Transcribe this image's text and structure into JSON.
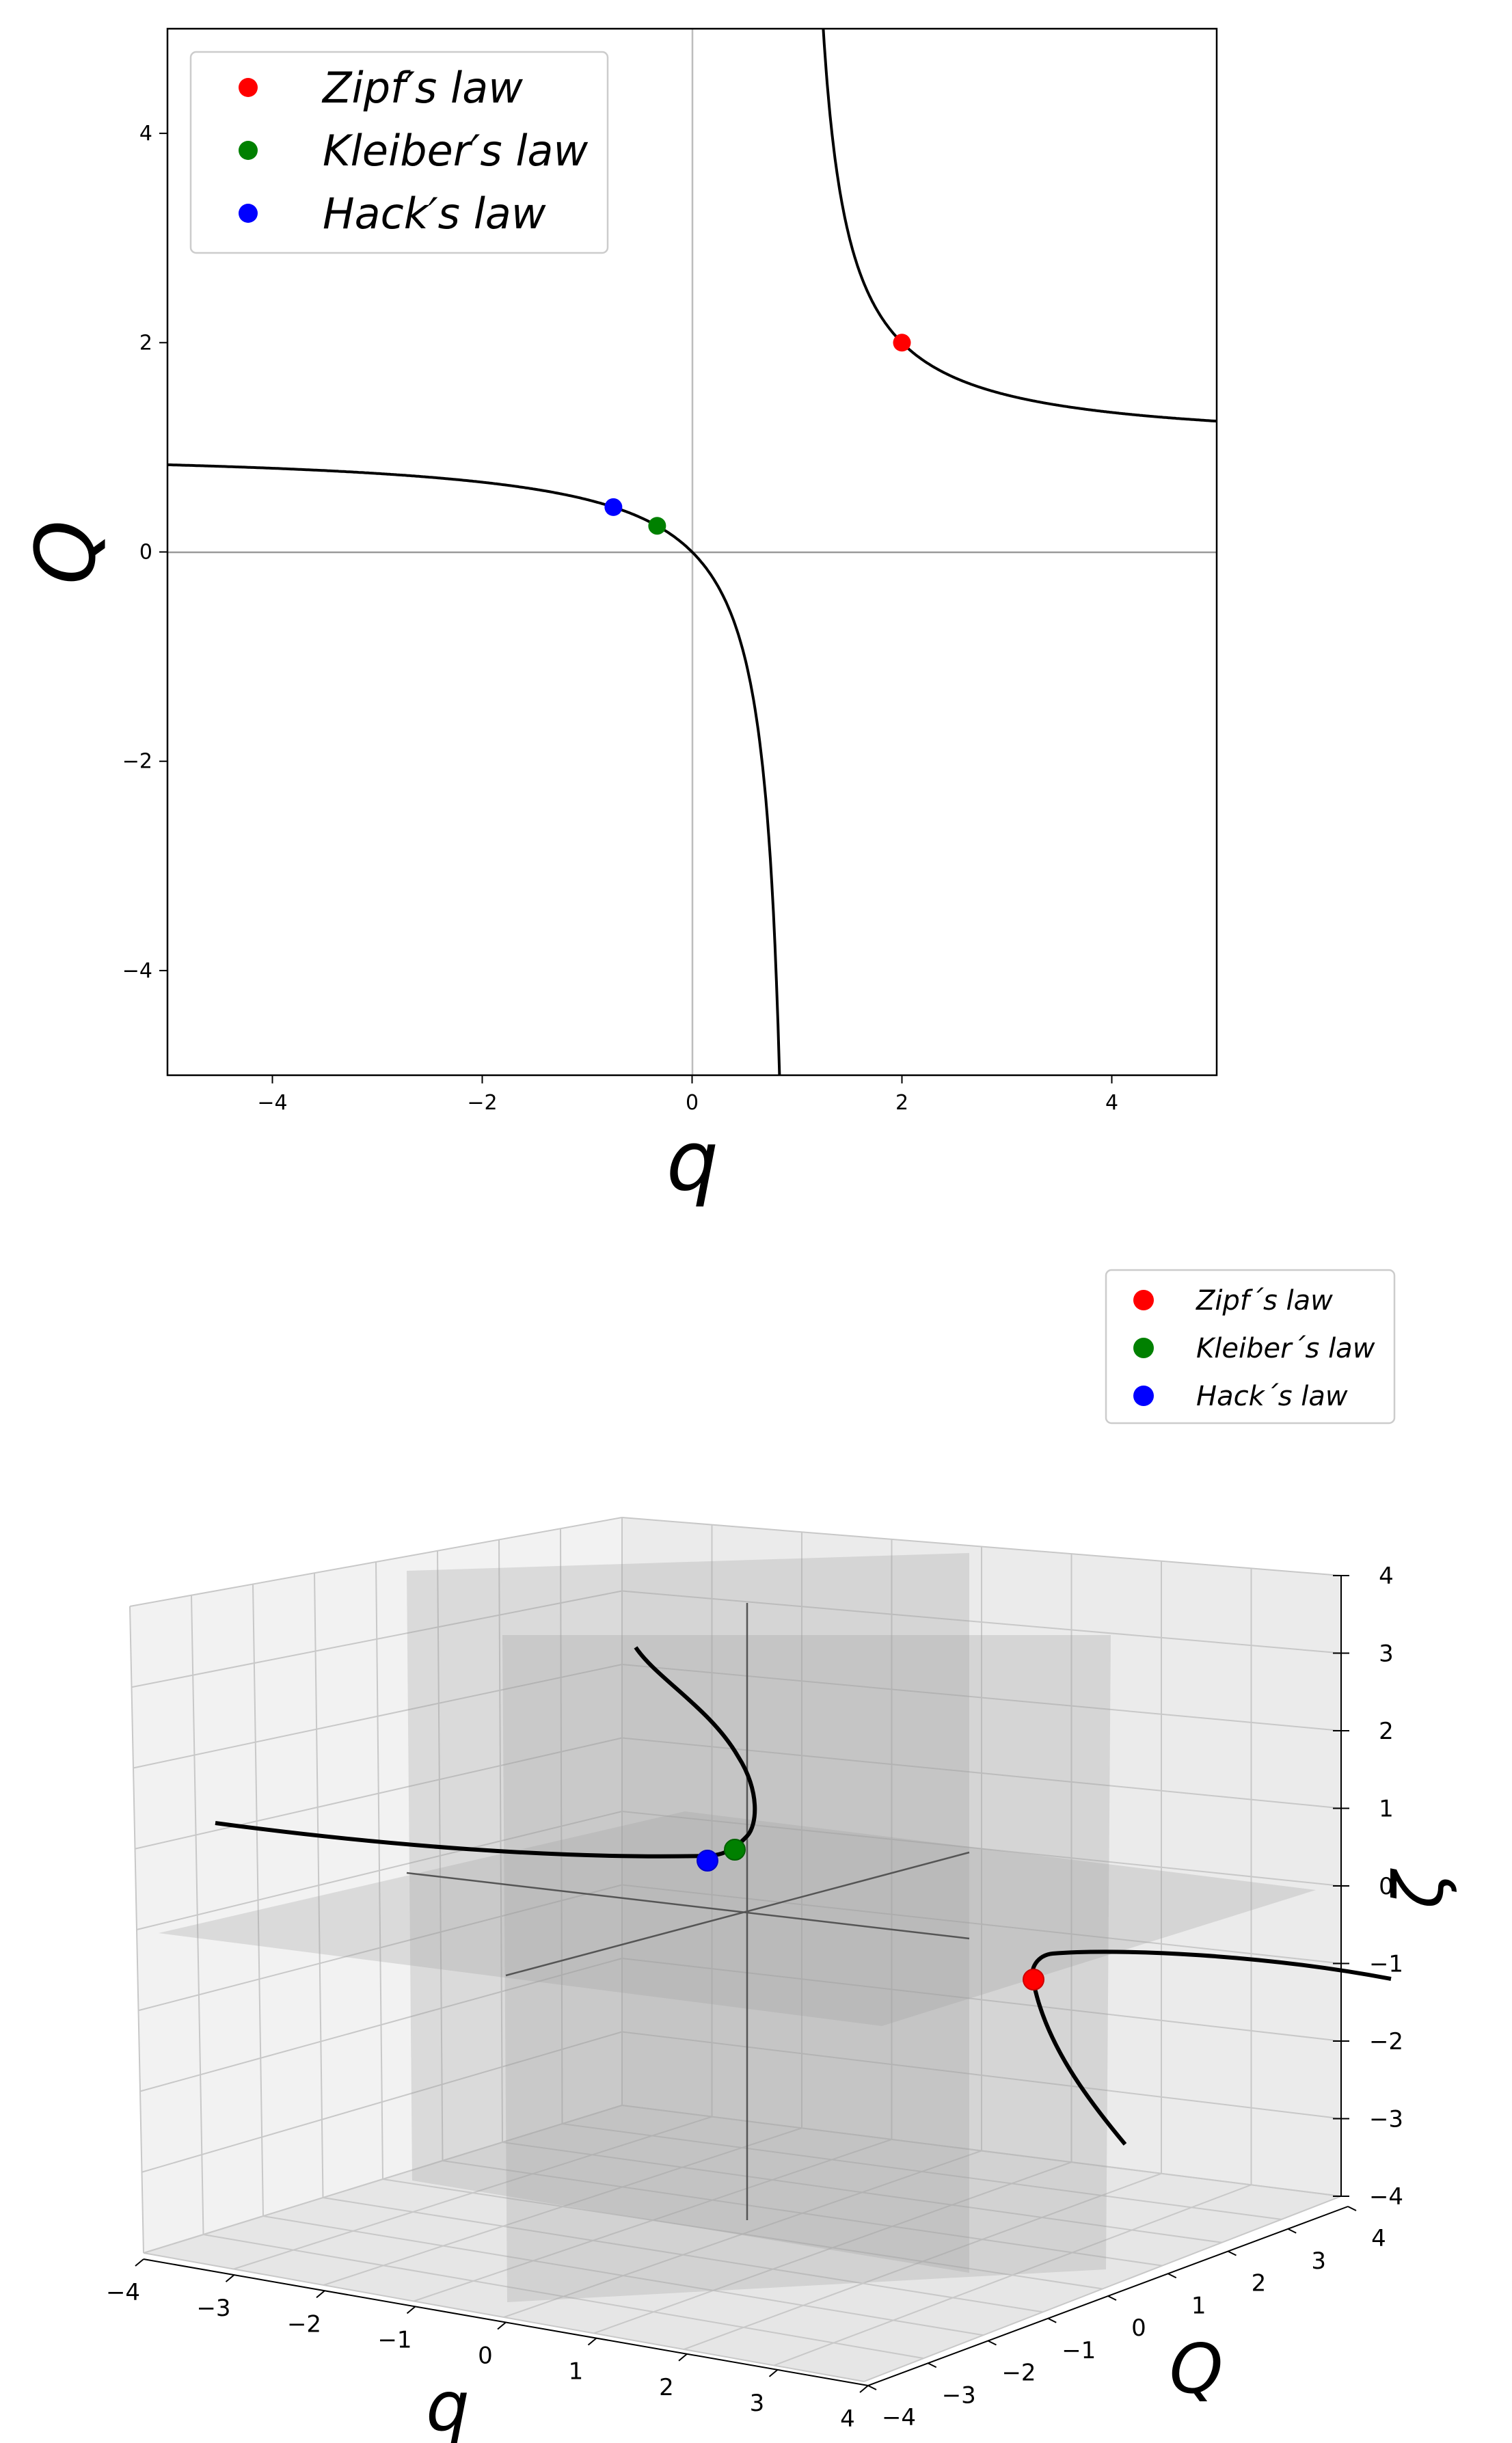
{
  "chart_data": [
    {
      "type": "line",
      "xlabel": "q",
      "ylabel": "Q",
      "xlim": [
        -5,
        5
      ],
      "ylim": [
        -5,
        5
      ],
      "xticks": [
        "−4",
        "−2",
        "0",
        "2",
        "4"
      ],
      "yticks": [
        "−4",
        "−2",
        "0",
        "2",
        "4"
      ],
      "grid": false,
      "reference_lines": [
        "x = 0",
        "y = 0"
      ],
      "legend_position": "upper-left",
      "series": [
        {
          "name": "curve",
          "color": "#000000",
          "relation": "Q = q / (q - 1)",
          "x": [
            -5,
            -4,
            -3,
            -2,
            -1,
            -0.5,
            0,
            0.3,
            0.5,
            0.6,
            0.7,
            0.8333,
            1.25,
            1.5,
            2,
            2.5,
            3,
            4,
            5
          ],
          "y": [
            0.833,
            0.8,
            0.75,
            0.667,
            0.5,
            0.333,
            0,
            -0.429,
            -1,
            -1.5,
            -2.333,
            -5,
            5,
            3,
            2,
            1.667,
            1.5,
            1.333,
            1.25
          ]
        }
      ],
      "points": [
        {
          "name": "Zipf's law",
          "q": 2,
          "Q": 2,
          "color": "#ff0000"
        },
        {
          "name": "Kleiber's law",
          "q": -0.333,
          "Q": 0.25,
          "color": "#008000"
        },
        {
          "name": "Hack's law",
          "q": -0.75,
          "Q": 0.4286,
          "color": "#0000ff"
        }
      ],
      "legend": [
        "Zipf′s law",
        "Kleiber′s law",
        "Hack′s law"
      ]
    },
    {
      "type": "line",
      "projection": "3d",
      "xlabel": "q",
      "ylabel": "Q",
      "zlabel": "ζ",
      "xlim": [
        -4,
        4
      ],
      "ylim": [
        -4,
        4
      ],
      "zlim": [
        -4,
        4
      ],
      "xticks": [
        "−4",
        "−3",
        "−2",
        "−1",
        "0",
        "1",
        "2",
        "3",
        "4"
      ],
      "yticks": [
        "−4",
        "−3",
        "−2",
        "−1",
        "0",
        "1",
        "2",
        "3",
        "4"
      ],
      "zticks": [
        "−4",
        "−3",
        "−2",
        "−1",
        "0",
        "1",
        "2",
        "3",
        "4"
      ],
      "grid": true,
      "legend_position": "upper-right",
      "points": [
        {
          "name": "Zipf´s law",
          "color": "#ff0000"
        },
        {
          "name": "Kleiber´s law",
          "color": "#008000"
        },
        {
          "name": "Hack´s law",
          "color": "#0000ff"
        }
      ],
      "legend": [
        "Zipf´s law",
        "Kleiber´s law",
        "Hack´s law"
      ]
    }
  ]
}
